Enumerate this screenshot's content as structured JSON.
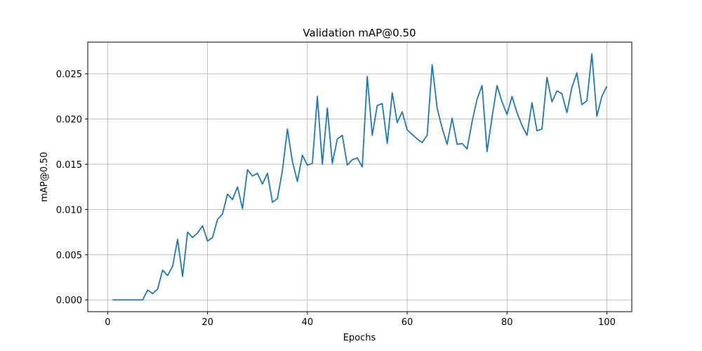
{
  "chart_data": {
    "type": "line",
    "title": "Validation mAP@0.50",
    "xlabel": "Epochs",
    "ylabel": "mAP@0.50",
    "xlim": [
      -4,
      105
    ],
    "ylim": [
      -0.0013,
      0.0285
    ],
    "x_ticks": [
      0,
      20,
      40,
      60,
      80,
      100
    ],
    "y_ticks": [
      0.0,
      0.005,
      0.01,
      0.015,
      0.02,
      0.025
    ],
    "x_tick_labels": [
      "0",
      "20",
      "40",
      "60",
      "80",
      "100"
    ],
    "y_tick_labels": [
      "0.000",
      "0.005",
      "0.010",
      "0.015",
      "0.020",
      "0.025"
    ],
    "grid": true,
    "line_color": "#1f77b4",
    "series": [
      {
        "x": [
          1,
          2,
          3,
          4,
          5,
          6,
          7,
          8,
          9,
          10,
          11,
          12,
          13,
          14,
          15,
          16,
          17,
          18,
          19,
          20,
          21,
          22,
          23,
          24,
          25,
          26,
          27,
          28,
          29,
          30,
          31,
          32,
          33,
          34,
          35,
          36,
          37,
          38,
          39,
          40,
          41,
          42,
          43,
          44,
          45,
          46,
          47,
          48,
          49,
          50,
          51,
          52,
          53,
          54,
          55,
          56,
          57,
          58,
          59,
          60,
          61,
          62,
          63,
          64,
          65,
          66,
          67,
          68,
          69,
          70,
          71,
          72,
          73,
          74,
          75,
          76,
          77,
          78,
          79,
          80,
          81,
          82,
          83,
          84,
          85,
          86,
          87,
          88,
          89,
          90,
          91,
          92,
          93,
          94,
          95,
          96,
          97,
          98,
          99,
          100
        ],
        "values": [
          0.0,
          0.0,
          0.0,
          0.0,
          0.0,
          0.0,
          0.0,
          0.0011,
          0.0007,
          0.0012,
          0.0033,
          0.0027,
          0.0037,
          0.0067,
          0.0026,
          0.0075,
          0.0069,
          0.0074,
          0.0082,
          0.0065,
          0.0069,
          0.0089,
          0.0095,
          0.0117,
          0.0111,
          0.0125,
          0.0101,
          0.0144,
          0.0137,
          0.014,
          0.0128,
          0.014,
          0.0108,
          0.0112,
          0.0143,
          0.0189,
          0.0153,
          0.0131,
          0.016,
          0.0149,
          0.0151,
          0.0225,
          0.015,
          0.0212,
          0.0151,
          0.0178,
          0.0182,
          0.0149,
          0.0155,
          0.0157,
          0.0147,
          0.0247,
          0.0182,
          0.0215,
          0.0217,
          0.0173,
          0.0229,
          0.0196,
          0.0208,
          0.0188,
          0.0183,
          0.0178,
          0.0174,
          0.0182,
          0.026,
          0.0212,
          0.019,
          0.0172,
          0.0201,
          0.0172,
          0.0173,
          0.0167,
          0.0197,
          0.0222,
          0.0237,
          0.0164,
          0.0202,
          0.0237,
          0.0219,
          0.0205,
          0.0225,
          0.0207,
          0.0193,
          0.0182,
          0.0218,
          0.0187,
          0.0189,
          0.0246,
          0.0219,
          0.0231,
          0.0228,
          0.0207,
          0.0235,
          0.0251,
          0.0216,
          0.022,
          0.0272,
          0.0203,
          0.0225,
          0.0236
        ]
      }
    ]
  }
}
